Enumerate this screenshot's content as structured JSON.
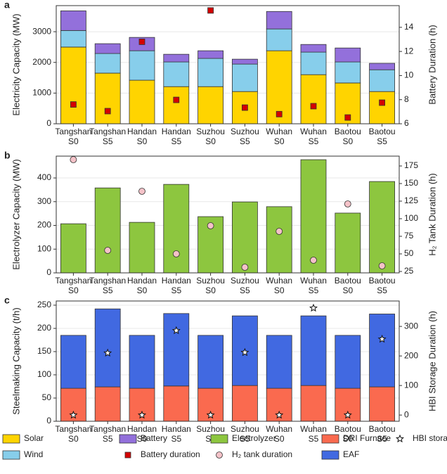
{
  "legend": "bottom",
  "chart_data": [
    {
      "type": "bar",
      "label": "a",
      "stacked": true,
      "grid": true,
      "categories": [
        "Tangshan\nS0",
        "Tangshan\nS5",
        "Handan\nS0",
        "Handan\nS5",
        "Suzhou\nS0",
        "Suzhou\nS5",
        "Wuhan\nS0",
        "Wuhan\nS5",
        "Baotou\nS0",
        "Baotou\nS5"
      ],
      "ylabel": "Electricity Capacity (MW)",
      "y2label": "Battery Duration (h)",
      "ylim": [
        0,
        3850
      ],
      "yticks": [
        0,
        1000,
        2000,
        3000
      ],
      "y2lim": [
        6,
        15.8
      ],
      "y2ticks": [
        6,
        8,
        10,
        12,
        14
      ],
      "series": [
        {
          "name": "Solar",
          "color": "#ffd400",
          "values": [
            2500,
            1650,
            1420,
            1210,
            1210,
            1050,
            2380,
            1600,
            1330,
            1050
          ]
        },
        {
          "name": "Wind",
          "color": "#87ceeb",
          "values": [
            540,
            640,
            960,
            805,
            920,
            895,
            710,
            735,
            685,
            710
          ]
        },
        {
          "name": "Battery",
          "color": "#9370db",
          "values": [
            640,
            320,
            435,
            250,
            250,
            160,
            570,
            250,
            455,
            210
          ]
        },
        {
          "name": "Battery duration",
          "color": "#d40000",
          "axis": "y2",
          "marker": "square",
          "values": [
            7.6,
            7.05,
            12.8,
            7.98,
            15.4,
            7.34,
            6.8,
            7.46,
            6.52,
            7.75
          ]
        }
      ]
    },
    {
      "type": "bar",
      "label": "b",
      "stacked": true,
      "grid": true,
      "categories": [
        "Tangshan\nS0",
        "Tangshan\nS5",
        "Handan\nS0",
        "Handan\nS5",
        "Suzhou\nS0",
        "Suzhou\nS5",
        "Wuhan\nS0",
        "Wuhan\nS5",
        "Baotou\nS0",
        "Baotou\nS5"
      ],
      "ylabel": "Electrolyzer Capacity (MW)",
      "y2label": "H₂ Tank Duration (h)",
      "ylim": [
        0,
        492
      ],
      "yticks": [
        0,
        100,
        200,
        300,
        400
      ],
      "y2lim": [
        23,
        189
      ],
      "y2ticks": [
        25,
        50,
        75,
        100,
        125,
        150,
        175
      ],
      "series": [
        {
          "name": "Electrolyzer",
          "color": "#8dc63f",
          "values": [
            207,
            358,
            213,
            373,
            237,
            299,
            279,
            477,
            252,
            385
          ]
        },
        {
          "name": "H₂ tank duration",
          "color": "#f4c2c8",
          "axis": "y2",
          "marker": "circle",
          "values": [
            184,
            55,
            139,
            50,
            90,
            31,
            82,
            41,
            121,
            33
          ]
        }
      ]
    },
    {
      "type": "bar",
      "label": "c",
      "stacked": true,
      "grid": true,
      "categories": [
        "Tangshan\nS0",
        "Tangshan\nS5",
        "Handan\nS0",
        "Handan\nS5",
        "Suzhou\nS0",
        "Suzhou\nS5",
        "Wuhan\nS0",
        "Wuhan\nS5",
        "Baotou\nS0",
        "Baotou\nS5"
      ],
      "ylabel": "Steelmaking Capacity (t/h)",
      "y2label": "HBI Storage Duration (h)",
      "ylim": [
        0,
        259
      ],
      "yticks": [
        0,
        50,
        100,
        150,
        200,
        250
      ],
      "y2lim": [
        -21,
        386
      ],
      "y2ticks": [
        0,
        100,
        200,
        300
      ],
      "series": [
        {
          "name": "DRI Furnace",
          "color": "#fa6a4f",
          "values": [
            71,
            74,
            71,
            76,
            71,
            77,
            71,
            77,
            71,
            74
          ]
        },
        {
          "name": "EAF",
          "color": "#4169e1",
          "values": [
            114,
            168,
            114,
            156,
            114,
            150,
            114,
            150,
            114,
            157
          ]
        },
        {
          "name": "HBI storage duration",
          "color": "#ffffff",
          "axis": "y2",
          "marker": "star",
          "values": [
            0,
            210,
            0,
            286,
            0,
            212,
            0,
            362,
            0,
            257
          ]
        }
      ]
    }
  ]
}
